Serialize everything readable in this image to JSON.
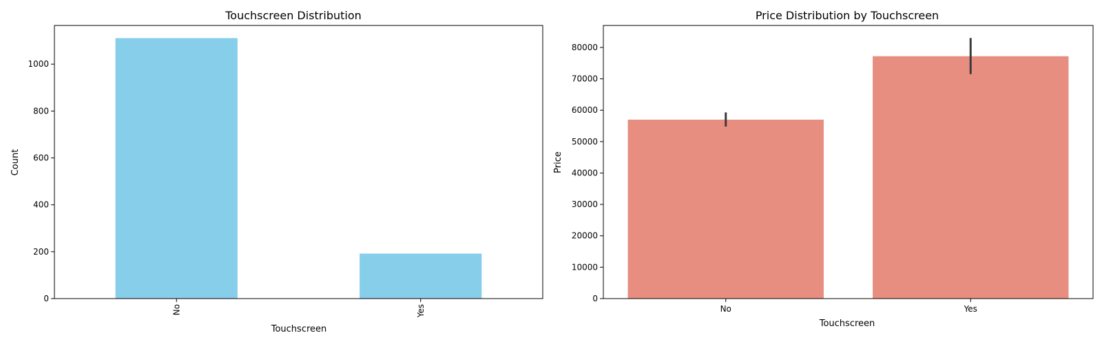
{
  "colors": {
    "left_bar": "#87ceeb",
    "right_bar": "#e88e80",
    "error_bar": "#3a3a3a",
    "axis": "#000000"
  },
  "chart_data": [
    {
      "type": "bar",
      "title": "Touchscreen Distribution",
      "xlabel": "Touchscreen",
      "ylabel": "Count",
      "categories": [
        "No",
        "Yes"
      ],
      "values": [
        1111,
        192
      ],
      "ylim": [
        0,
        1165
      ],
      "yticks": [
        0,
        200,
        400,
        600,
        800,
        1000
      ],
      "xtick_rotation": -90,
      "grid": false
    },
    {
      "type": "bar",
      "title": "Price Distribution by Touchscreen",
      "xlabel": "Touchscreen",
      "ylabel": "Price",
      "categories": [
        "No",
        "Yes"
      ],
      "values": [
        57000,
        77200
      ],
      "error_low": [
        54800,
        71500
      ],
      "error_high": [
        59300,
        83000
      ],
      "ylim": [
        0,
        87000
      ],
      "yticks": [
        0,
        10000,
        20000,
        30000,
        40000,
        50000,
        60000,
        70000,
        80000
      ],
      "xtick_rotation": 0,
      "grid": false
    }
  ]
}
